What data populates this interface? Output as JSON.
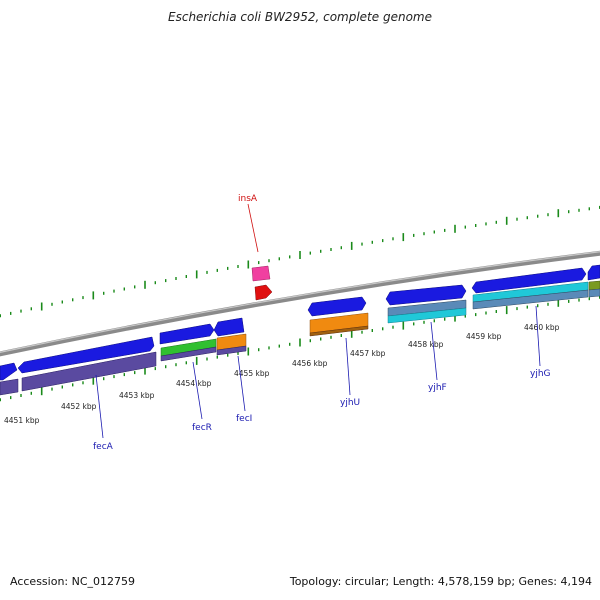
{
  "title": "Escherichia coli BW2952, complete genome",
  "footer": {
    "accession": "Accession: NC_012759",
    "topology": "Topology: circular; Length: 4,578,159 bp; Genes: 4,194"
  },
  "kbp_labels": [
    "4451 kbp",
    "4452 kbp",
    "4453 kbp",
    "4454 kbp",
    "4455 kbp",
    "4456 kbp",
    "4457 kbp",
    "4458 kbp",
    "4459 kbp",
    "4460 kbp"
  ],
  "genes": [
    "insA",
    "fecA",
    "fecR",
    "fecI",
    "yjhU",
    "yjhF",
    "yjhG"
  ],
  "colors": {
    "backbone": "#8a8a8a",
    "cds_forward": "#1a1ae0",
    "orange": "#f08a10",
    "green": "#30c030",
    "purple": "#5a4aa0",
    "cyan": "#20c8d8",
    "steel": "#5a8ab8",
    "pink": "#f040a0",
    "red": "#e01010",
    "tick_green": "#1a8a1a"
  }
}
